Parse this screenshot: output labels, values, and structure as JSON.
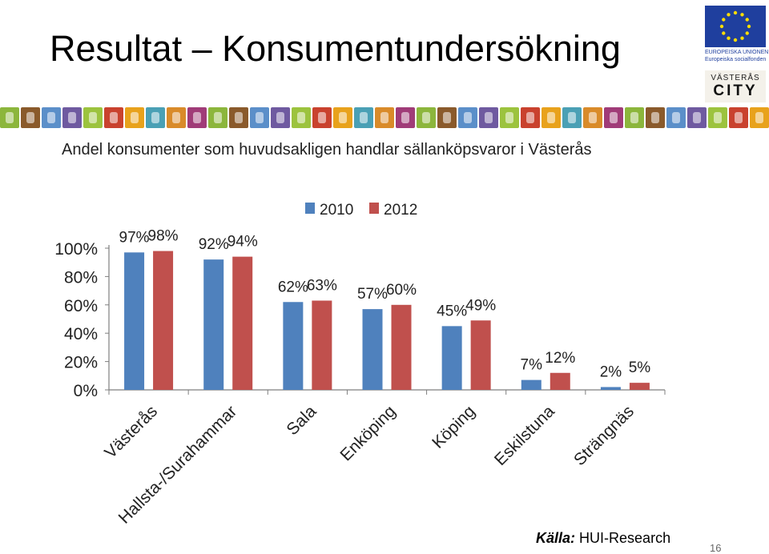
{
  "slide": {
    "title": "Resultat – Konsumentundersökning",
    "source_label": "Källa:",
    "source_text": "HUI-Research",
    "page_number": "16"
  },
  "logos": {
    "eu_line1": "EUROPEISKA UNIONEN",
    "eu_line2": "Europeiska socialfonden",
    "city_line1": "VÄSTERÅS",
    "city_line2": "CITY"
  },
  "colors": {
    "series_2010": "#4f81bd",
    "series_2012": "#c0504d",
    "eu_blue": "#1f3f9e",
    "eu_star": "#ffdd00"
  },
  "chart_data": {
    "type": "bar",
    "title": "Andel konsumenter som huvudsakligen handlar sällanköpsvaror i Västerås",
    "categories": [
      "Västerås",
      "Hallsta-/Surahammar",
      "Sala",
      "Enköping",
      "Köping",
      "Eskilstuna",
      "Strängnäs"
    ],
    "series": [
      {
        "name": "2010",
        "values": [
          97,
          92,
          62,
          57,
          45,
          7,
          2
        ],
        "labels": [
          "97%",
          "92%",
          "62%",
          "57%",
          "45%",
          "7%",
          "2%"
        ]
      },
      {
        "name": "2012",
        "values": [
          98,
          94,
          63,
          60,
          49,
          12,
          5
        ],
        "labels": [
          "98%",
          "94%",
          "63%",
          "60%",
          "49%",
          "12%",
          "5%"
        ]
      }
    ],
    "yticks": [
      "0%",
      "20%",
      "40%",
      "60%",
      "80%",
      "100%"
    ],
    "ylim": [
      0,
      100
    ],
    "grid": false,
    "legend": "top"
  }
}
